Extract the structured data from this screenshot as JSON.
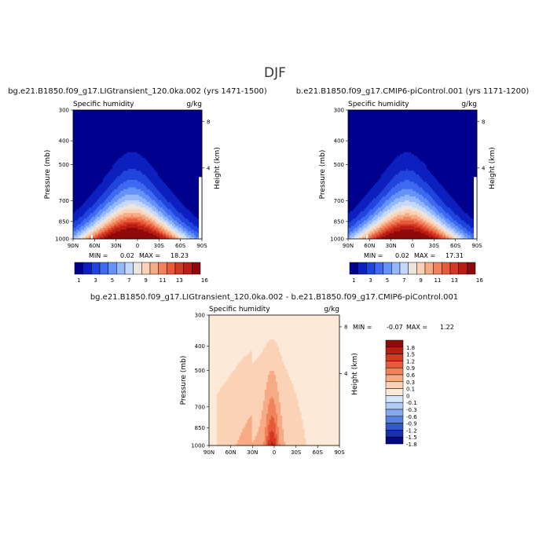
{
  "page_title": "DJF",
  "colors": {
    "background": "#ffffff",
    "plot_background": "#00008f",
    "missing": "#ffffff"
  },
  "chart_data": [
    {
      "type": "heatmap",
      "id": "left",
      "title": "bg.e21.B1850.f09_g17.LIGtransient_120.0ka.002 (yrs 1471-1500)",
      "variable": "Specific humidity",
      "units": "g/kg",
      "ylabel": "Pressure (mb)",
      "ylabel_right": "Height (km)",
      "x_ticks": [
        "90N",
        "60N",
        "30N",
        "0",
        "30S",
        "60S",
        "90S"
      ],
      "y_ticks": [
        "300",
        "400",
        "500",
        "700",
        "850",
        "1000"
      ],
      "height_ticks": [
        "8",
        "4"
      ],
      "stats": {
        "min_label": "MIN =",
        "min": "0.02",
        "max_label": "MAX =",
        "max": "18.23"
      },
      "peak": 18.23,
      "colorbar": {
        "labels": [
          "1",
          "3",
          "5",
          "7",
          "9",
          "11",
          "13",
          "16"
        ],
        "colors": [
          "#00008f",
          "#0c1fbf",
          "#1f45dd",
          "#3d6af0",
          "#6592f6",
          "#94b8fb",
          "#c4d8fd",
          "#ece5dc",
          "#fbd2b6",
          "#f7ab84",
          "#f1835c",
          "#e75a3a",
          "#d33823",
          "#b91d13",
          "#8f0a0a"
        ]
      }
    },
    {
      "type": "heatmap",
      "id": "right",
      "title": "b.e21.B1850.f09_g17.CMIP6-piControl.001 (yrs 1171-1200)",
      "variable": "Specific humidity",
      "units": "g/kg",
      "ylabel": "Pressure (mb)",
      "ylabel_right": "Height (km)",
      "x_ticks": [
        "90N",
        "60N",
        "30N",
        "0",
        "30S",
        "60S",
        "90S"
      ],
      "y_ticks": [
        "300",
        "400",
        "500",
        "700",
        "850",
        "1000"
      ],
      "height_ticks": [
        "8",
        "4"
      ],
      "stats": {
        "min_label": "MIN =",
        "min": "0.02",
        "max_label": "MAX =",
        "max": "17.31"
      },
      "peak": 17.31,
      "colorbar": {
        "labels": [
          "1",
          "3",
          "5",
          "7",
          "9",
          "11",
          "13",
          "16"
        ],
        "colors": [
          "#00008f",
          "#0c1fbf",
          "#1f45dd",
          "#3d6af0",
          "#6592f6",
          "#94b8fb",
          "#c4d8fd",
          "#ece5dc",
          "#fbd2b6",
          "#f7ab84",
          "#f1835c",
          "#e75a3a",
          "#d33823",
          "#b91d13",
          "#8f0a0a"
        ]
      }
    },
    {
      "type": "heatmap",
      "id": "diff",
      "title": "bg.e21.B1850.f09_g17.LIGtransient_120.0ka.002 - b.e21.B1850.f09_g17.CMIP6-piControl.001",
      "variable": "Specific humidity",
      "units": "g/kg",
      "ylabel": "Pressure (mb)",
      "ylabel_right": "Height (km)",
      "x_ticks": [
        "90N",
        "60N",
        "30N",
        "0",
        "30S",
        "60S",
        "90S"
      ],
      "y_ticks": [
        "300",
        "400",
        "500",
        "700",
        "850",
        "1000"
      ],
      "height_ticks": [
        "8",
        "4"
      ],
      "stats": {
        "min_label": "MIN =",
        "min": "-0.07",
        "max_label": "MAX =",
        "max": "1.22"
      },
      "colorbar": {
        "labels": [
          "1.8",
          "1.5",
          "1.2",
          "0.9",
          "0.6",
          "0.3",
          "0.1",
          "0",
          "-0.1",
          "-0.3",
          "-0.6",
          "-0.9",
          "-1.2",
          "-1.5",
          "-1.8"
        ],
        "colors": [
          "#8f0a0a",
          "#b91d13",
          "#d33823",
          "#e75a3a",
          "#f1835c",
          "#f7ab84",
          "#fbd2b6",
          "#fde9d8",
          "#d4e4fb",
          "#b0cbf6",
          "#86a8ee",
          "#5a80e2",
          "#3356cc",
          "#1830aa",
          "#040a80"
        ]
      }
    }
  ]
}
